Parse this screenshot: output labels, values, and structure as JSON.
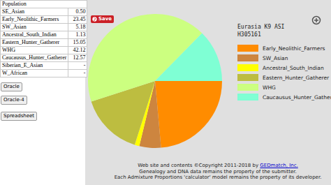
{
  "chart_data": {
    "type": "pie",
    "title": "Eurasia K9 ASI",
    "subtitle": "H305161",
    "categories": [
      "Early_Neolithic_Farmers",
      "SW_Asian",
      "Ancestral_South_Indian",
      "Eastern_Hunter_Gatherer",
      "WHG",
      "Caucausus_Hunter_Gatherer"
    ],
    "values": [
      23.45,
      5.18,
      1.13,
      15.05,
      42.12,
      12.57
    ],
    "colors": [
      "#ff8c00",
      "#cd853f",
      "#ffff00",
      "#bdbd40",
      "#ccff80",
      "#7fffd4"
    ],
    "legend": "right"
  },
  "save_button": "Save",
  "table": {
    "header": "Population",
    "rows": [
      [
        "SE_Asian",
        "0.50"
      ],
      [
        "Early_Neolithic_Farmers",
        "23.45"
      ],
      [
        "SW_Asian",
        "5.18"
      ],
      [
        "Ancestral_South_Indian",
        "1.13"
      ],
      [
        "Eastern_Hunter_Gatherer",
        "15.05"
      ],
      [
        "WHG",
        "42.12"
      ],
      [
        "Caucausus_Hunter_Gatherer",
        "12.57"
      ],
      [
        "Siberian_E_Asian",
        "-"
      ],
      [
        "W_African",
        "-"
      ]
    ]
  },
  "buttons": [
    "Oracle",
    "Oracle-4",
    "Spreadsheet"
  ],
  "footer": {
    "lines": [
      [
        "Web site and contents ©Copyright 2011-2018 by",
        "GEDmatch, Inc."
      ],
      [
        "Genealogy and DNA data remains the property of the submitter."
      ],
      [
        "Each Admixture Proportions 'calculator' model remains the property of its developer."
      ]
    ]
  }
}
